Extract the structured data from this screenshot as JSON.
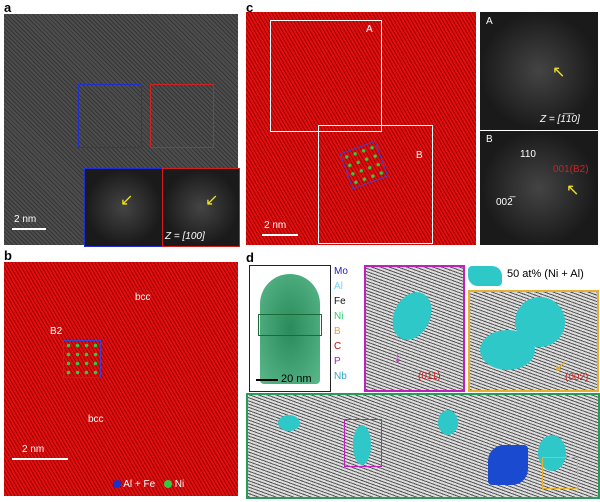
{
  "panels": {
    "a": {
      "label": "a",
      "scale": "2 nm",
      "zone": "Z = [100]"
    },
    "b": {
      "label": "b",
      "b2": "B2",
      "bcc_top": "bcc",
      "bcc_bottom": "bcc",
      "scale": "2 nm",
      "legend": [
        {
          "label": "Al + Fe",
          "color": "#1a2fd0"
        },
        {
          "label": "Ni",
          "color": "#2ecc40"
        }
      ]
    },
    "c": {
      "label": "c",
      "box_a": "A",
      "box_b": "B",
      "scale": "2 nm"
    },
    "fft_a": {
      "label": "A",
      "zone": "Z = [1̅1̅0]"
    },
    "fft_b": {
      "label": "B",
      "spot1": "110",
      "spot2": "002̅",
      "spot3": "001(B2)"
    },
    "d": {
      "label": "d",
      "scale": "20 nm",
      "iso": "50 at% (Ni + Al)",
      "dir1": "(011)",
      "dir2": "(002)",
      "elements": [
        {
          "name": "Mo",
          "color": "#2020c0"
        },
        {
          "name": "Al",
          "color": "#70d8f0"
        },
        {
          "name": "Fe",
          "color": "#111111"
        },
        {
          "name": "Ni",
          "color": "#2ecc71"
        },
        {
          "name": "B",
          "color": "#f0a030"
        },
        {
          "name": "C",
          "color": "#c01010"
        },
        {
          "name": "P",
          "color": "#b020c0"
        },
        {
          "name": "Nb",
          "color": "#30a8c8"
        }
      ]
    }
  },
  "colors": {
    "magenta": "#c020c0",
    "orange": "#e8b030",
    "green": "#2a9a5a",
    "blue": "#1a2fd0",
    "red_box": "#d02020",
    "arrow": "#f0e020"
  }
}
